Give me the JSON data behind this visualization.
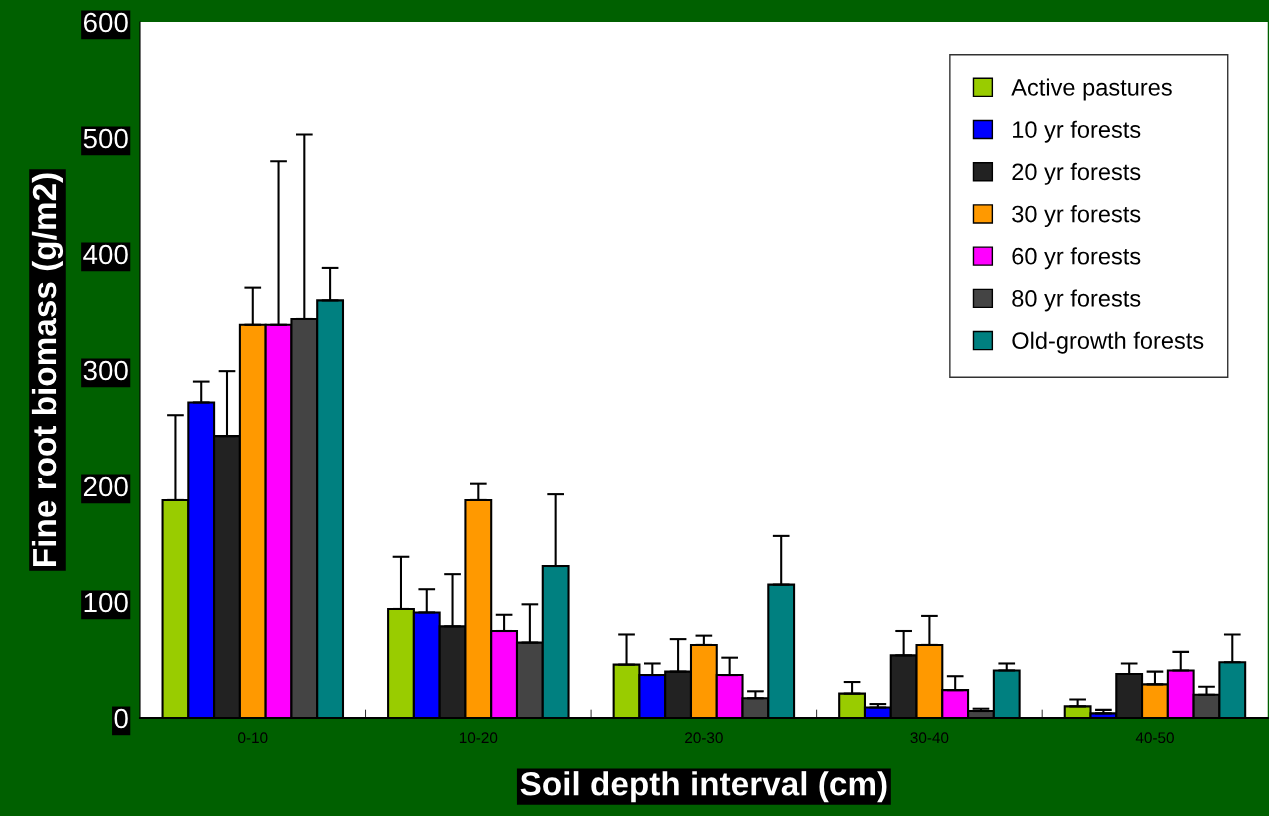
{
  "chart_data": {
    "type": "bar",
    "xlabel": "Soil depth interval (cm)",
    "ylabel": "Fine root biomass (g/m2)",
    "categories": [
      "0-10",
      "10-20",
      "20-30",
      "30-40",
      "40-50"
    ],
    "series": [
      {
        "name": "Active pastures",
        "color": "#99cc00",
        "values": [
          188,
          94,
          46,
          21,
          10
        ],
        "errors": [
          73,
          45,
          26,
          10,
          6
        ]
      },
      {
        "name": "10 yr forests",
        "color": "#0000ff",
        "values": [
          272,
          91,
          37,
          9,
          4
        ],
        "errors": [
          18,
          20,
          10,
          3,
          3
        ]
      },
      {
        "name": "20 yr forests",
        "color": "#222222",
        "values": [
          243,
          79,
          40,
          54,
          38
        ],
        "errors": [
          56,
          45,
          28,
          21,
          9
        ]
      },
      {
        "name": "30 yr forests",
        "color": "#ff9900",
        "values": [
          339,
          188,
          63,
          63,
          29
        ],
        "errors": [
          32,
          14,
          8,
          25,
          11
        ]
      },
      {
        "name": "60 yr forests",
        "color": "#ff00ff",
        "values": [
          339,
          75,
          37,
          24,
          41
        ],
        "errors": [
          141,
          14,
          15,
          12,
          16
        ]
      },
      {
        "name": "80 yr forests",
        "color": "#444444",
        "values": [
          344,
          65,
          17,
          6,
          20
        ],
        "errors": [
          159,
          33,
          6,
          2,
          7
        ]
      },
      {
        "name": "Old-growth forests",
        "color": "#008080",
        "values": [
          360,
          131,
          115,
          41,
          48
        ],
        "errors": [
          28,
          62,
          42,
          6,
          24
        ]
      }
    ],
    "ylim": [
      0,
      600
    ],
    "yticks": [
      0,
      100,
      200,
      300,
      400,
      500,
      600
    ],
    "legend": "top right",
    "grid": false
  }
}
